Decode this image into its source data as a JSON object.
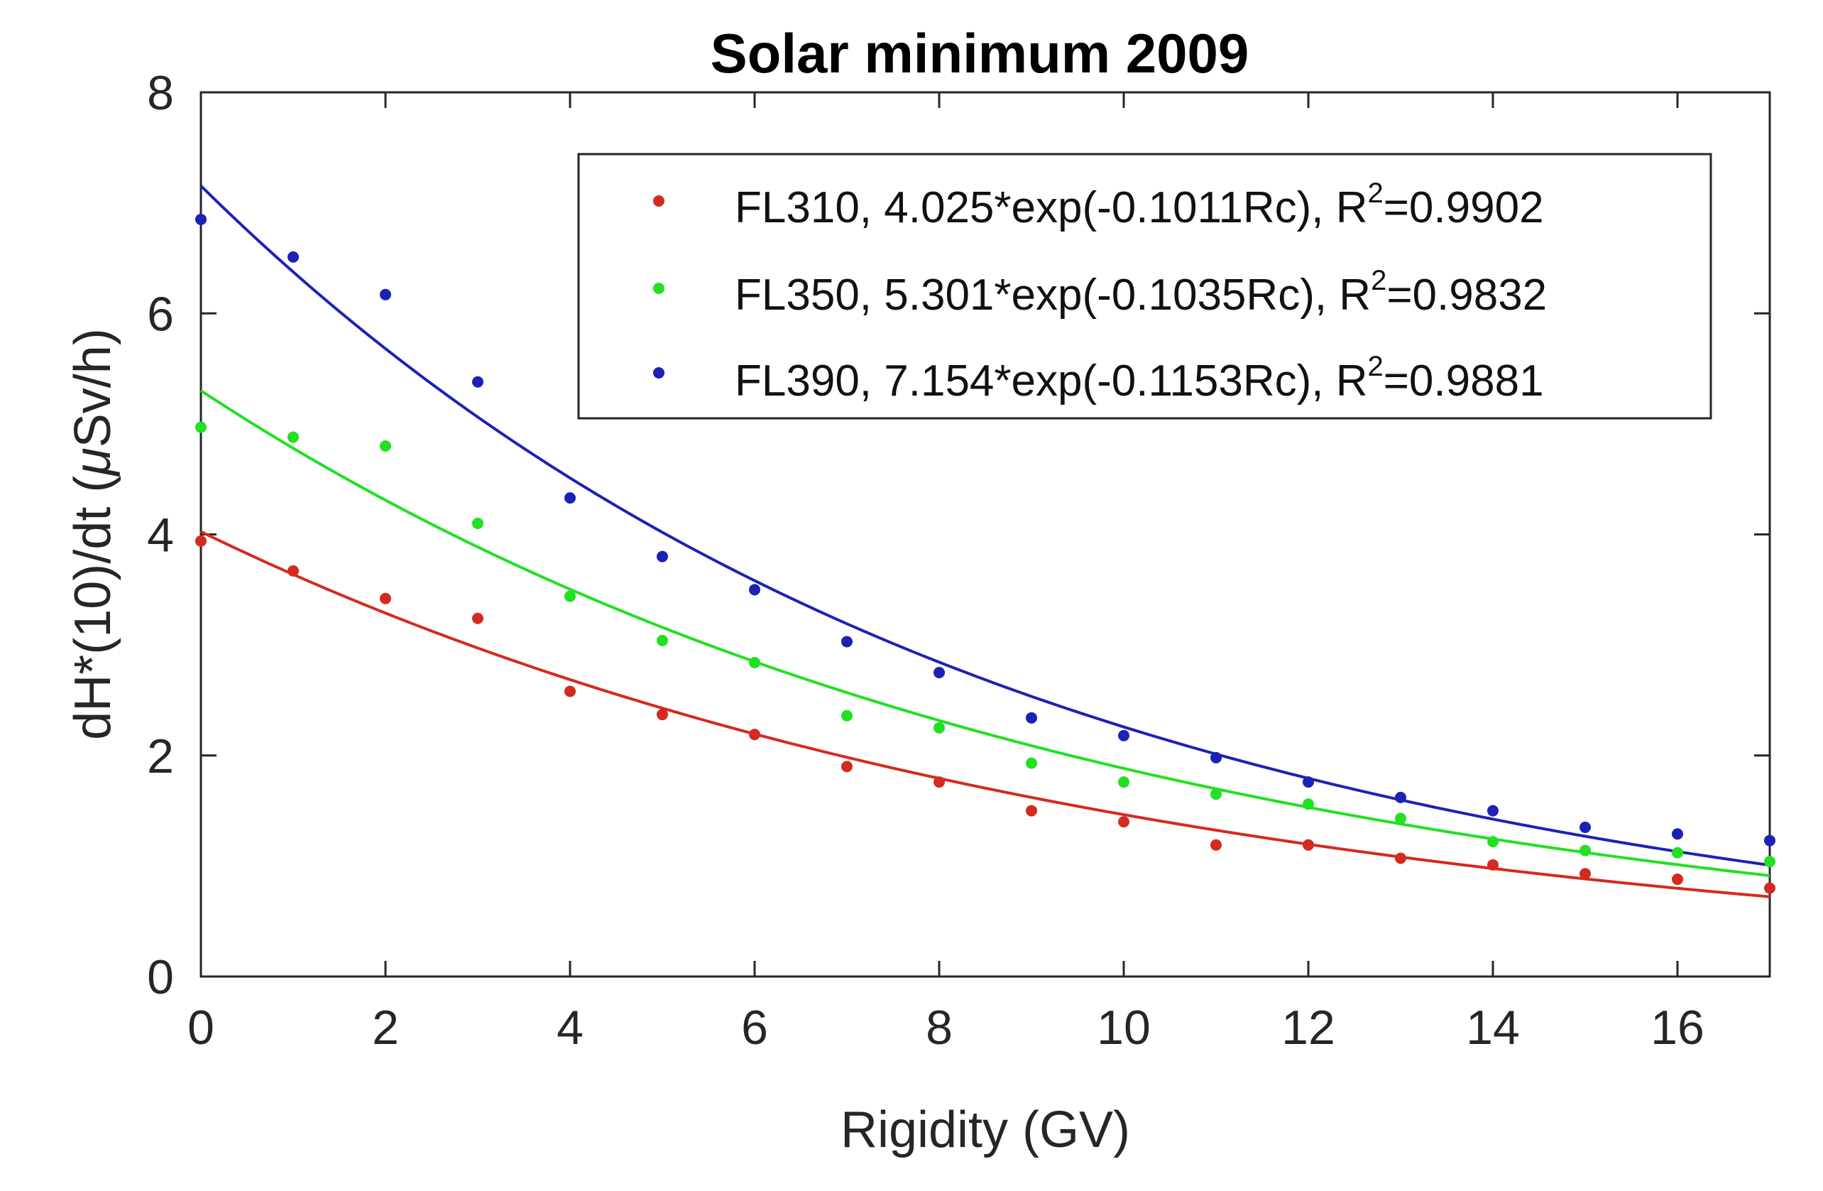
{
  "chart_data": {
    "type": "scatter",
    "title": "Solar minimum 2009",
    "xlabel": "Rigidity (GV)",
    "ylabel_main": "dH*(10)/dt (",
    "ylabel_mu": "μ",
    "ylabel_unit": "Sv/h)",
    "xlim": [
      0,
      17
    ],
    "ylim": [
      0,
      8
    ],
    "xticks": [
      0,
      2,
      4,
      6,
      8,
      10,
      12,
      14,
      16
    ],
    "yticks": [
      0,
      2,
      4,
      6,
      8
    ],
    "xtick_labels": [
      "0",
      "2",
      "4",
      "6",
      "8",
      "10",
      "12",
      "14",
      "16"
    ],
    "ytick_labels": [
      "0",
      "2",
      "4",
      "6",
      "8"
    ],
    "legend_position": "top-right",
    "x": [
      0,
      1,
      2,
      3,
      4,
      5,
      6,
      7,
      8,
      9,
      10,
      11,
      12,
      13,
      14,
      15,
      16,
      17
    ],
    "series": [
      {
        "name": "FL310",
        "color": "#d42a1f",
        "label_prefix": "FL310, 4.025*exp(-0.1011Rc), R",
        "label_sup": "2",
        "label_suffix": "=0.9902",
        "fit": {
          "a": 4.025,
          "b": -0.1011
        },
        "values": [
          3.94,
          3.67,
          3.42,
          3.24,
          2.58,
          2.37,
          2.19,
          1.9,
          1.76,
          1.5,
          1.4,
          1.19,
          1.19,
          1.07,
          1.01,
          0.93,
          0.88,
          0.8
        ]
      },
      {
        "name": "FL350",
        "color": "#22e022",
        "label_prefix": "FL350, 5.301*exp(-0.1035Rc), R",
        "label_sup": "2",
        "label_suffix": "=0.9832",
        "fit": {
          "a": 5.301,
          "b": -0.1035
        },
        "values": [
          4.97,
          4.88,
          4.8,
          4.1,
          3.44,
          3.04,
          2.84,
          2.36,
          2.25,
          1.93,
          1.76,
          1.65,
          1.56,
          1.43,
          1.22,
          1.14,
          1.12,
          1.04
        ]
      },
      {
        "name": "FL390",
        "color": "#1c22b4",
        "label_prefix": "FL390, 7.154*exp(-0.1153Rc), R",
        "label_sup": "2",
        "label_suffix": "=0.9881",
        "fit": {
          "a": 7.154,
          "b": -0.1153
        },
        "values": [
          6.85,
          6.51,
          6.17,
          5.38,
          4.33,
          3.8,
          3.5,
          3.03,
          2.75,
          2.34,
          2.18,
          1.98,
          1.76,
          1.62,
          1.5,
          1.35,
          1.29,
          1.23
        ]
      }
    ]
  }
}
